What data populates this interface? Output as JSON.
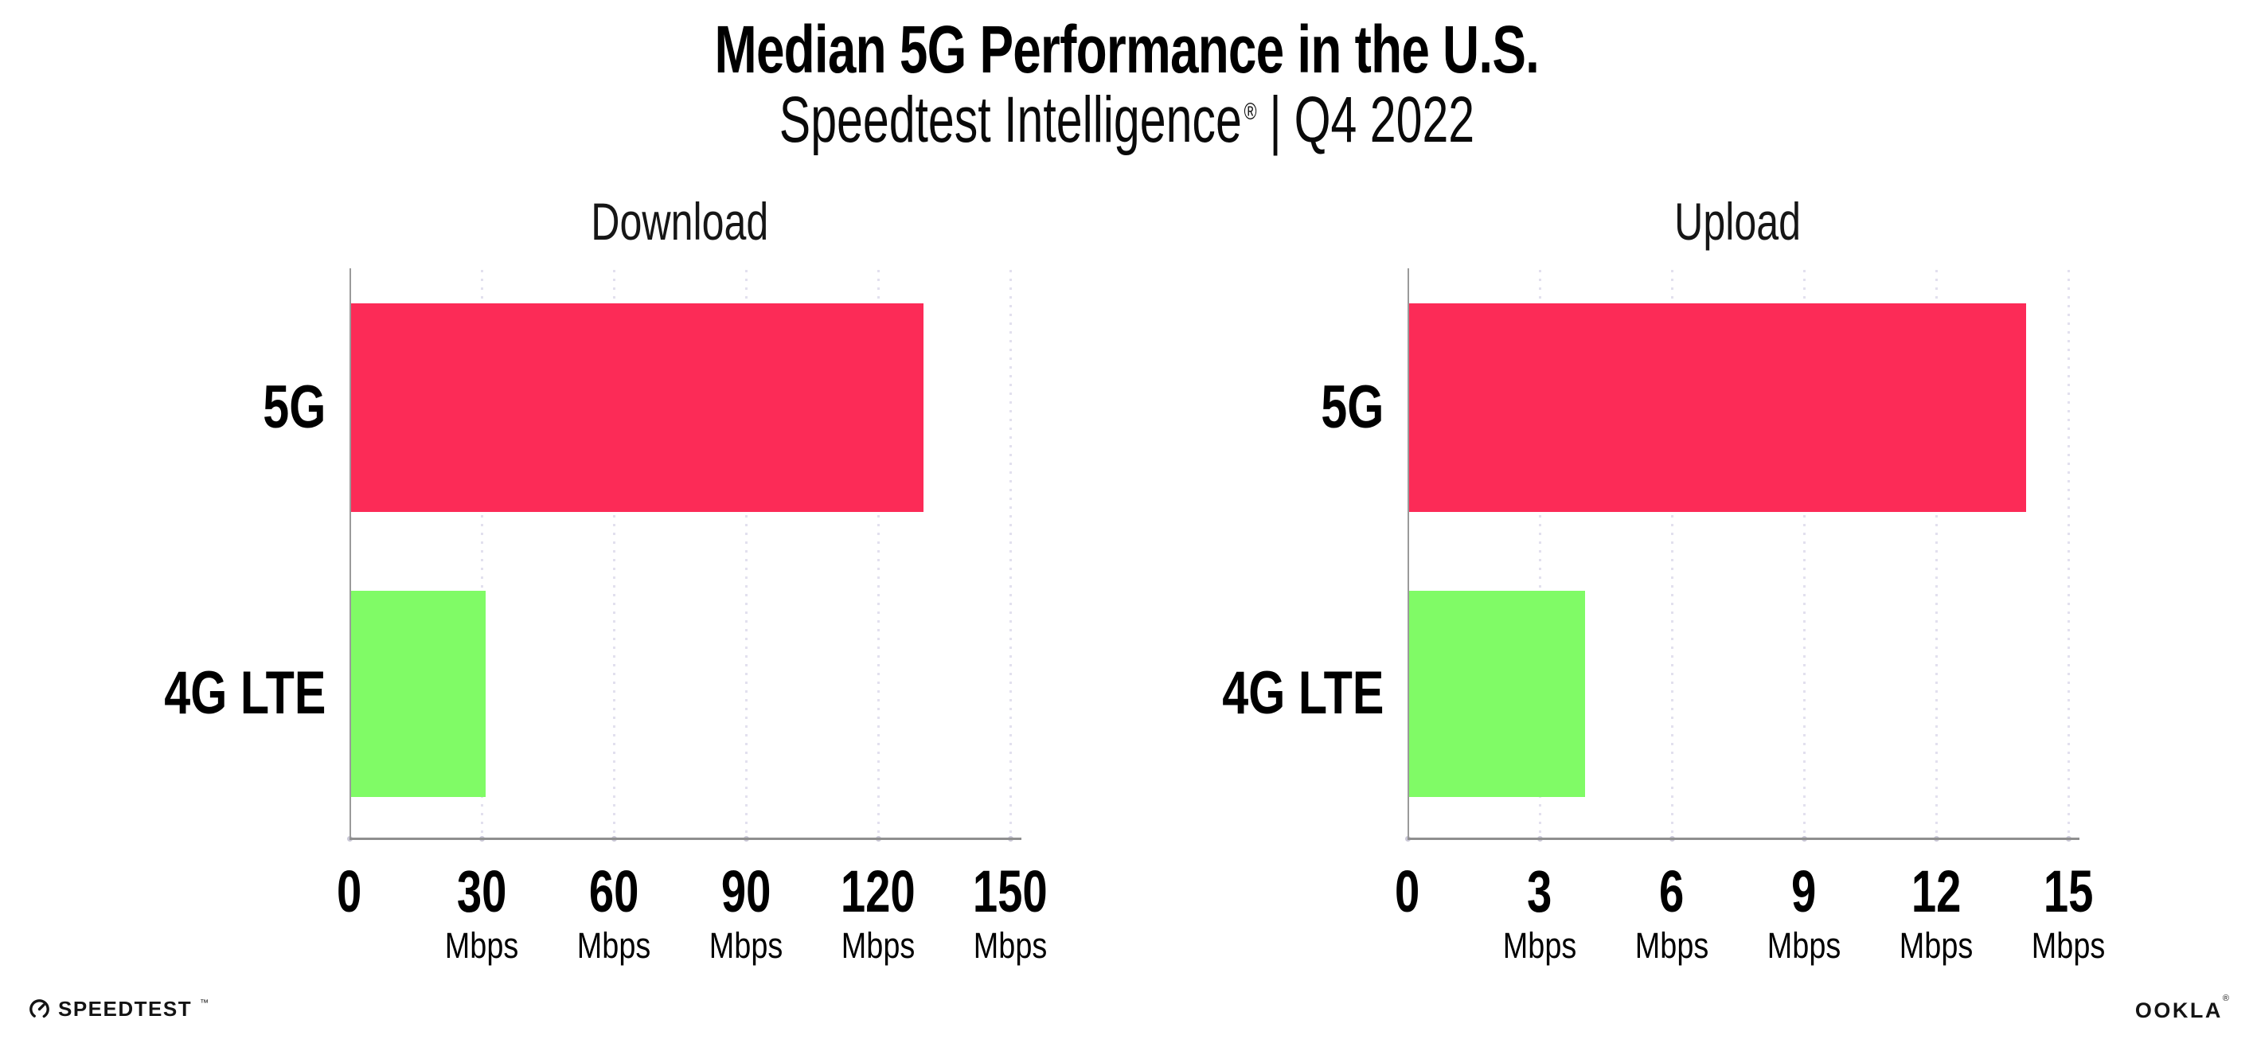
{
  "header": {
    "title": "Median 5G Performance in the U.S.",
    "subtitle_brand": "Speedtest Intelligence",
    "subtitle_reg": "®",
    "subtitle_sep": "|",
    "subtitle_period": "Q4 2022"
  },
  "chart_data": [
    {
      "type": "bar",
      "orientation": "horizontal",
      "title": "Download",
      "categories": [
        "5G",
        "4G LTE"
      ],
      "values": [
        130,
        30.5
      ],
      "unit": "Mbps",
      "xlim": [
        0,
        150
      ],
      "xticks": [
        0,
        30,
        60,
        90,
        120,
        150
      ],
      "bar_colors": [
        "#FC2B57",
        "#80FB66"
      ],
      "grid": "vertical-dotted",
      "legend": "none"
    },
    {
      "type": "bar",
      "orientation": "horizontal",
      "title": "Upload",
      "categories": [
        "5G",
        "4G LTE"
      ],
      "values": [
        14,
        4
      ],
      "unit": "Mbps",
      "xlim": [
        0,
        15
      ],
      "xticks": [
        0,
        3,
        6,
        9,
        12,
        15
      ],
      "bar_colors": [
        "#FC2B57",
        "#80FB66"
      ],
      "grid": "vertical-dotted",
      "legend": "none"
    }
  ],
  "colors": {
    "bar_5g": "#FC2B57",
    "bar_4g_lte": "#80FB66",
    "gridline": "#E2E0EE",
    "axis": "#8F8F8F",
    "text": "#000000",
    "background": "#FFFFFF"
  },
  "footer": {
    "speedtest_label": "SPEEDTEST",
    "speedtest_tm": "™",
    "ookla_label": "OOKLA",
    "ookla_reg": "®"
  }
}
